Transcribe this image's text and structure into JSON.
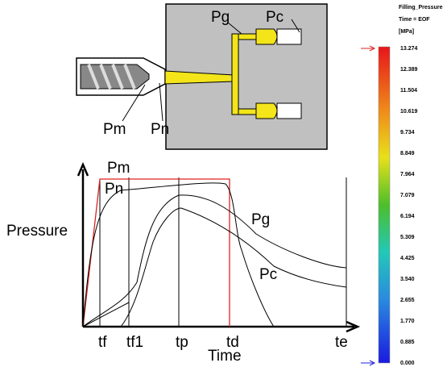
{
  "mold": {
    "pg": "Pg",
    "pc": "Pc",
    "pm": "Pm",
    "pn": "Pn"
  },
  "graph": {
    "y_axis_label": "Pressure",
    "x_axis_label": "Time",
    "curves": [
      "Pm",
      "Pn",
      "Pg",
      "Pc"
    ],
    "x_ticks": [
      "tf",
      "tf1",
      "tp",
      "td",
      "te"
    ]
  },
  "legend": {
    "title": "Filling_Pressure",
    "time": "Time = EOF",
    "unit": "[MPa]",
    "values": [
      "13.274",
      "12.389",
      "11.504",
      "10.619",
      "9.734",
      "8.849",
      "7.964",
      "7.079",
      "6.194",
      "5.309",
      "4.425",
      "3.540",
      "2.655",
      "1.770",
      "0.885",
      "0.000"
    ]
  }
}
